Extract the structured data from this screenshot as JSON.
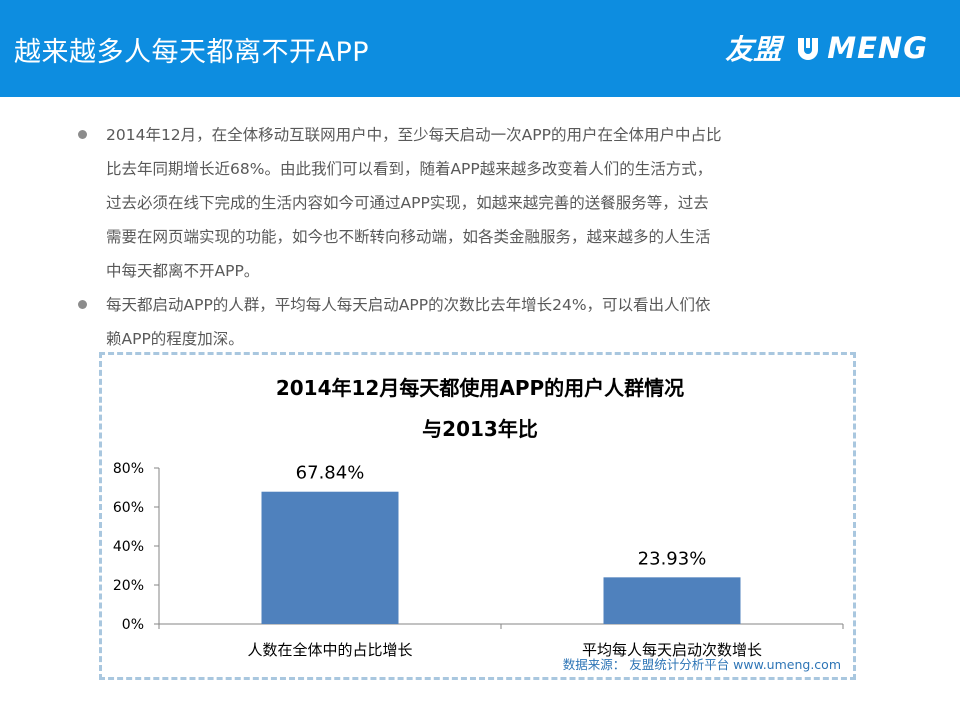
{
  "header": {
    "title": "越来越多人每天都离不开APP",
    "logo_cn": "友盟",
    "logo_en": "MENG"
  },
  "bullets": [
    {
      "lines": [
        "2014年12月，在全体移动互联网用户中，至少每天启动一次APP的用户在全体用户中占比",
        "比去年同期增长近68%。由此我们可以看到，随着APP越来越多改变着人们的生活方式，",
        "过去必须在线下完成的生活内容如今可通过APP实现，如越来越完善的送餐服务等，过去",
        "需要在网页端实现的功能，如今也不断转向移动端，如各类金融服务，越来越多的人生活",
        "中每天都离不开APP。"
      ]
    },
    {
      "lines": [
        "每天都启动APP的人群，平均每人每天启动APP的次数比去年增长24%，可以看出人们依",
        "赖APP的程度加深。"
      ]
    }
  ],
  "chart_data": {
    "type": "bar",
    "title": "2014年12月每天都使用APP的用户人群情况",
    "subtitle": "与2013年比",
    "categories": [
      "人数在全体中的占比增长",
      "平均每人每天启动次数增长"
    ],
    "values": [
      67.84,
      23.93
    ],
    "value_labels": [
      "67.84%",
      "23.93%"
    ],
    "ylim": [
      0,
      80
    ],
    "yticks": [
      0,
      20,
      40,
      60,
      80
    ],
    "ytick_labels": [
      "0%",
      "20%",
      "40%",
      "60%",
      "80%"
    ],
    "xlabel": "",
    "ylabel": "",
    "bar_color": "#4f81bd",
    "grid": false
  },
  "source": "数据来源： 友盟统计分析平台 www.umeng.com"
}
